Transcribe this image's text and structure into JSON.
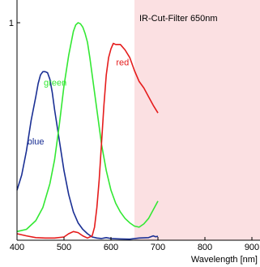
{
  "chart_data": {
    "type": "line",
    "xlabel": "Wavelength [nm]",
    "ylabel": "",
    "xlim": [
      400,
      900
    ],
    "ylim": [
      0,
      1
    ],
    "xticks": [
      400,
      500,
      600,
      700,
      800,
      900
    ],
    "xtick_labels": [
      "400",
      "500",
      "600",
      "700",
      "800",
      "900"
    ],
    "yticks": [
      1
    ],
    "ytick_labels": [
      "1"
    ],
    "grid": false,
    "legend": "none",
    "annotations": [
      {
        "text": "IR-Cut-Filter 650nm",
        "x_start": 650,
        "x_end": 900,
        "color": "#fbe0e2"
      }
    ],
    "series": [
      {
        "name": "blue",
        "color": "#1a2f94",
        "label_at": [
          422,
          0.44
        ],
        "x": [
          400,
          410,
          420,
          430,
          440,
          445,
          450,
          455,
          460,
          465,
          470,
          475,
          480,
          490,
          500,
          510,
          520,
          530,
          540,
          550,
          560,
          570,
          580,
          590,
          600,
          620,
          640,
          660,
          680,
          690,
          695,
          700
        ],
        "y": [
          0.23,
          0.3,
          0.41,
          0.55,
          0.66,
          0.72,
          0.76,
          0.775,
          0.775,
          0.77,
          0.74,
          0.68,
          0.6,
          0.46,
          0.32,
          0.21,
          0.13,
          0.08,
          0.05,
          0.03,
          0.015,
          0.01,
          0.008,
          0.012,
          0.008,
          0.006,
          0.005,
          0.01,
          0.012,
          0.02,
          0.016,
          0.018
        ]
      },
      {
        "name": "green",
        "color": "#33e833",
        "label_at": [
          457,
          0.71
        ],
        "x": [
          400,
          420,
          440,
          455,
          470,
          480,
          490,
          500,
          510,
          520,
          525,
          530,
          535,
          540,
          545,
          550,
          555,
          560,
          570,
          580,
          590,
          600,
          610,
          620,
          630,
          640,
          650,
          660,
          670,
          680,
          690,
          700
        ],
        "y": [
          0.04,
          0.05,
          0.09,
          0.15,
          0.26,
          0.37,
          0.53,
          0.71,
          0.85,
          0.96,
          0.99,
          1.0,
          0.995,
          0.98,
          0.95,
          0.91,
          0.84,
          0.76,
          0.6,
          0.44,
          0.32,
          0.23,
          0.17,
          0.13,
          0.1,
          0.08,
          0.065,
          0.06,
          0.075,
          0.1,
          0.14,
          0.18
        ]
      },
      {
        "name": "red",
        "color": "#e51c1c",
        "label_at": [
          611,
          0.805
        ],
        "x": [
          400,
          420,
          440,
          460,
          480,
          500,
          510,
          520,
          530,
          540,
          550,
          560,
          565,
          570,
          575,
          580,
          585,
          590,
          595,
          600,
          605,
          610,
          620,
          630,
          640,
          650,
          660,
          670,
          680,
          690,
          700
        ],
        "y": [
          0.03,
          0.02,
          0.012,
          0.01,
          0.01,
          0.015,
          0.03,
          0.04,
          0.035,
          0.02,
          0.01,
          0.02,
          0.06,
          0.15,
          0.28,
          0.45,
          0.62,
          0.76,
          0.84,
          0.88,
          0.905,
          0.9,
          0.9,
          0.875,
          0.84,
          0.78,
          0.73,
          0.7,
          0.66,
          0.62,
          0.585
        ]
      }
    ]
  }
}
